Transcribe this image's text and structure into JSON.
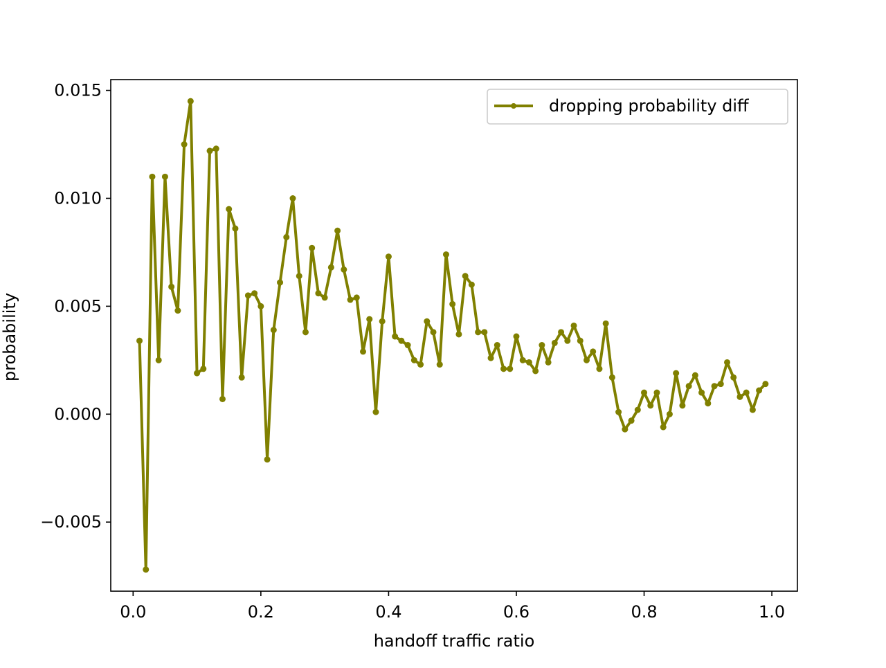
{
  "chart_data": {
    "type": "line",
    "xlabel": "handoff traffic ratio",
    "ylabel": "probability",
    "xlim": [
      -0.035,
      1.04
    ],
    "ylim": [
      -0.0082,
      0.0155
    ],
    "xticks": [
      0.0,
      0.2,
      0.4,
      0.6,
      0.8,
      1.0
    ],
    "xtick_labels": [
      "0.0",
      "0.2",
      "0.4",
      "0.6",
      "0.8",
      "1.0"
    ],
    "yticks": [
      -0.005,
      0.0,
      0.005,
      0.01,
      0.015
    ],
    "ytick_labels": [
      "−0.005",
      "0.000",
      "0.005",
      "0.010",
      "0.015"
    ],
    "grid": false,
    "legend_position": "upper right",
    "series": [
      {
        "name": "dropping probability diff",
        "color": "#808000",
        "marker": "circle",
        "x": [
          0.01,
          0.02,
          0.03,
          0.04,
          0.05,
          0.06,
          0.07,
          0.08,
          0.09,
          0.1,
          0.11,
          0.12,
          0.13,
          0.14,
          0.15,
          0.16,
          0.17,
          0.18,
          0.19,
          0.2,
          0.21,
          0.22,
          0.23,
          0.24,
          0.25,
          0.26,
          0.27,
          0.28,
          0.29,
          0.3,
          0.31,
          0.32,
          0.33,
          0.34,
          0.35,
          0.36,
          0.37,
          0.38,
          0.39,
          0.4,
          0.41,
          0.42,
          0.43,
          0.44,
          0.45,
          0.46,
          0.47,
          0.48,
          0.49,
          0.5,
          0.51,
          0.52,
          0.53,
          0.54,
          0.55,
          0.56,
          0.57,
          0.58,
          0.59,
          0.6,
          0.61,
          0.62,
          0.63,
          0.64,
          0.65,
          0.66,
          0.67,
          0.68,
          0.69,
          0.7,
          0.71,
          0.72,
          0.73,
          0.74,
          0.75,
          0.76,
          0.77,
          0.78,
          0.79,
          0.8,
          0.81,
          0.82,
          0.83,
          0.84,
          0.85,
          0.86,
          0.87,
          0.88,
          0.89,
          0.9,
          0.91,
          0.92,
          0.93,
          0.94,
          0.95,
          0.96,
          0.97,
          0.98,
          0.99
        ],
        "y": [
          0.0034,
          -0.0072,
          0.011,
          0.0025,
          0.011,
          0.0059,
          0.0048,
          0.0125,
          0.0145,
          0.0019,
          0.0021,
          0.0122,
          0.0123,
          0.0007,
          0.0095,
          0.0086,
          0.0017,
          0.0055,
          0.0056,
          0.005,
          -0.0021,
          0.0039,
          0.0061,
          0.0082,
          0.01,
          0.0064,
          0.0038,
          0.0077,
          0.0056,
          0.0054,
          0.0068,
          0.0085,
          0.0067,
          0.0053,
          0.0054,
          0.0029,
          0.0044,
          0.0001,
          0.0043,
          0.0073,
          0.0036,
          0.0034,
          0.0032,
          0.0025,
          0.0023,
          0.0043,
          0.0038,
          0.0023,
          0.0074,
          0.0051,
          0.0037,
          0.0064,
          0.006,
          0.0038,
          0.0038,
          0.0026,
          0.0032,
          0.0021,
          0.0021,
          0.0036,
          0.0025,
          0.0024,
          0.002,
          0.0032,
          0.0024,
          0.0033,
          0.0038,
          0.0034,
          0.0041,
          0.0034,
          0.0025,
          0.0029,
          0.0021,
          0.0042,
          0.0017,
          0.0001,
          -0.0007,
          -0.0003,
          0.0002,
          0.001,
          0.0004,
          0.001,
          -0.0006,
          -0.0,
          0.0019,
          0.0004,
          0.0013,
          0.0018,
          0.001,
          0.0005,
          0.0013,
          0.0014,
          0.0024,
          0.0017,
          0.0008,
          0.001,
          0.0002,
          0.0011,
          0.0014
        ]
      }
    ]
  }
}
